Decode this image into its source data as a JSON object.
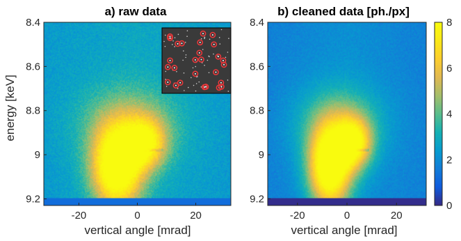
{
  "chart_data": [
    {
      "type": "heatmap",
      "panel": "a",
      "title": "a) raw data",
      "xlabel": "vertical angle [mrad]",
      "ylabel": "energy [keV]",
      "xlim": [
        -32,
        32
      ],
      "ylim": [
        8.4,
        9.23
      ],
      "x_ticks": [
        "-20",
        "0",
        "20"
      ],
      "y_ticks": [
        "8.4",
        "8.6",
        "8.8",
        "9",
        "9.2"
      ],
      "x_tick_values": [
        -20,
        0,
        20
      ],
      "y_tick_values": [
        8.4,
        8.6,
        8.8,
        9.0,
        9.2
      ],
      "blobs": [
        {
          "x": -7,
          "y": 9.06,
          "sx": 6,
          "sy": 0.13,
          "peak": 7.0
        },
        {
          "x": 3,
          "y": 8.95,
          "sx": 5,
          "sy": 0.08,
          "peak": 4.2
        },
        {
          "x": -3,
          "y": 8.86,
          "sx": 12,
          "sy": 0.12,
          "peak": 2.0
        }
      ],
      "background_level": 2.3,
      "inset": {
        "description": "detector frame with circled photon hits",
        "hit_count": 27
      }
    },
    {
      "type": "heatmap",
      "panel": "b",
      "title": "b) cleaned data [ph./px]",
      "xlabel": "vertical angle [mrad]",
      "ylabel": "",
      "xlim": [
        -32,
        32
      ],
      "ylim": [
        8.4,
        9.23
      ],
      "x_ticks": [
        "-20",
        "0",
        "20"
      ],
      "y_ticks": [
        "8.4",
        "8.6",
        "8.8",
        "9",
        "9.2"
      ],
      "x_tick_values": [
        -20,
        0,
        20
      ],
      "y_tick_values": [
        8.4,
        8.6,
        8.8,
        9.0,
        9.2
      ],
      "blobs": [
        {
          "x": -7,
          "y": 9.06,
          "sx": 6,
          "sy": 0.13,
          "peak": 7.5
        },
        {
          "x": 3,
          "y": 8.95,
          "sx": 5,
          "sy": 0.08,
          "peak": 4.8
        },
        {
          "x": -3,
          "y": 8.86,
          "sx": 12,
          "sy": 0.12,
          "peak": 2.4
        }
      ],
      "background_level": 1.6,
      "colorbar": {
        "min": 0,
        "max": 8,
        "ticks": [
          "0",
          "2",
          "4",
          "6",
          "8"
        ],
        "tick_values": [
          0,
          2,
          4,
          6,
          8
        ],
        "colormap": "parula"
      }
    }
  ]
}
